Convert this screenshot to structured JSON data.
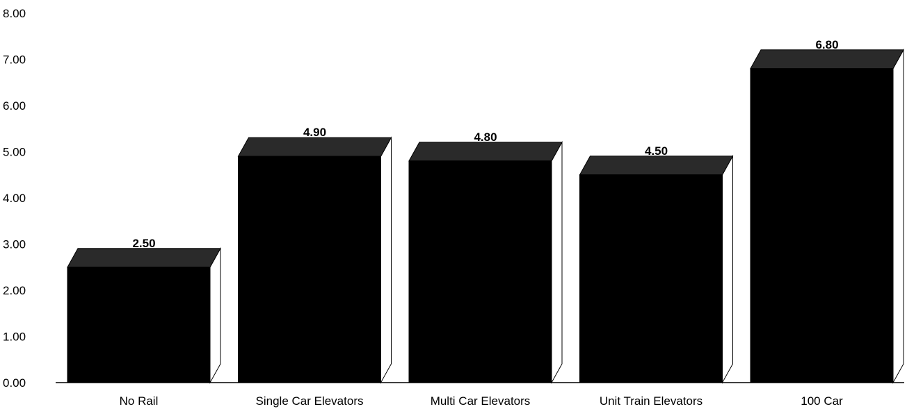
{
  "chart_data": {
    "type": "bar",
    "categories": [
      "No Rail",
      "Single Car Elevators",
      "Multi Car Elevators",
      "Unit Train Elevators",
      "100 Car"
    ],
    "values": [
      2.5,
      4.9,
      4.8,
      4.5,
      6.8
    ],
    "value_labels": [
      "2.50",
      "4.90",
      "4.80",
      "4.50",
      "6.80"
    ],
    "yticks": [
      "0.00",
      "1.00",
      "2.00",
      "3.00",
      "4.00",
      "5.00",
      "6.00",
      "7.00",
      "8.00"
    ],
    "ylim": [
      0,
      8
    ],
    "title": "",
    "xlabel": "",
    "ylabel": "",
    "grid": false,
    "legend": "none",
    "colors": {
      "bar_front": "#000000",
      "bar_top": "#2a2a2a",
      "bar_side": "#ffffff",
      "axis": "#000000"
    }
  }
}
